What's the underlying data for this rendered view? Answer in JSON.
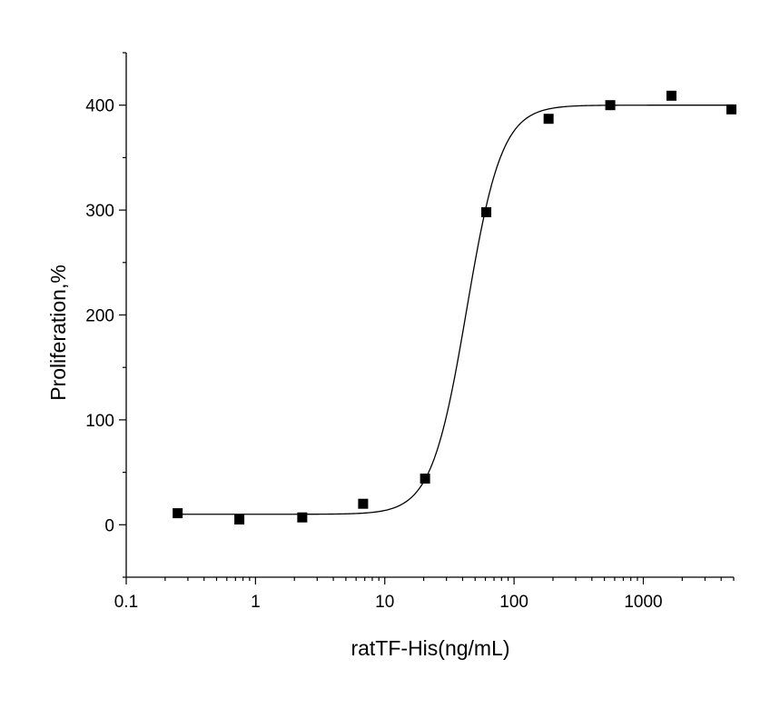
{
  "chart_data": {
    "type": "scatter",
    "title": "",
    "xlabel": "ratTF-His(ng/mL)",
    "ylabel": "Proliferation,%",
    "x_scale": "log",
    "xlim": [
      0.1,
      5000
    ],
    "ylim": [
      -50,
      450
    ],
    "x_ticks": [
      0.1,
      1,
      10,
      100,
      1000
    ],
    "x_tick_labels": [
      "0.1",
      "1",
      "10",
      "100",
      "1000"
    ],
    "y_ticks": [
      0,
      100,
      200,
      300,
      400
    ],
    "y_tick_labels": [
      "0",
      "100",
      "200",
      "300",
      "400"
    ],
    "grid": false,
    "legend": "none",
    "series": [
      {
        "marker": "square",
        "color": "#000000",
        "points": [
          {
            "x": 0.25,
            "y": 11
          },
          {
            "x": 0.75,
            "y": 5
          },
          {
            "x": 2.3,
            "y": 7
          },
          {
            "x": 6.8,
            "y": 20
          },
          {
            "x": 20.5,
            "y": 44
          },
          {
            "x": 61,
            "y": 298
          },
          {
            "x": 185,
            "y": 387
          },
          {
            "x": 555,
            "y": 400
          },
          {
            "x": 1650,
            "y": 409
          },
          {
            "x": 4800,
            "y": 396
          }
        ]
      }
    ],
    "fit_curve": {
      "model": "4-parameter logistic",
      "bottom": 10,
      "top": 400,
      "ec50": 43,
      "hill": 3.2,
      "color": "#000000"
    }
  }
}
